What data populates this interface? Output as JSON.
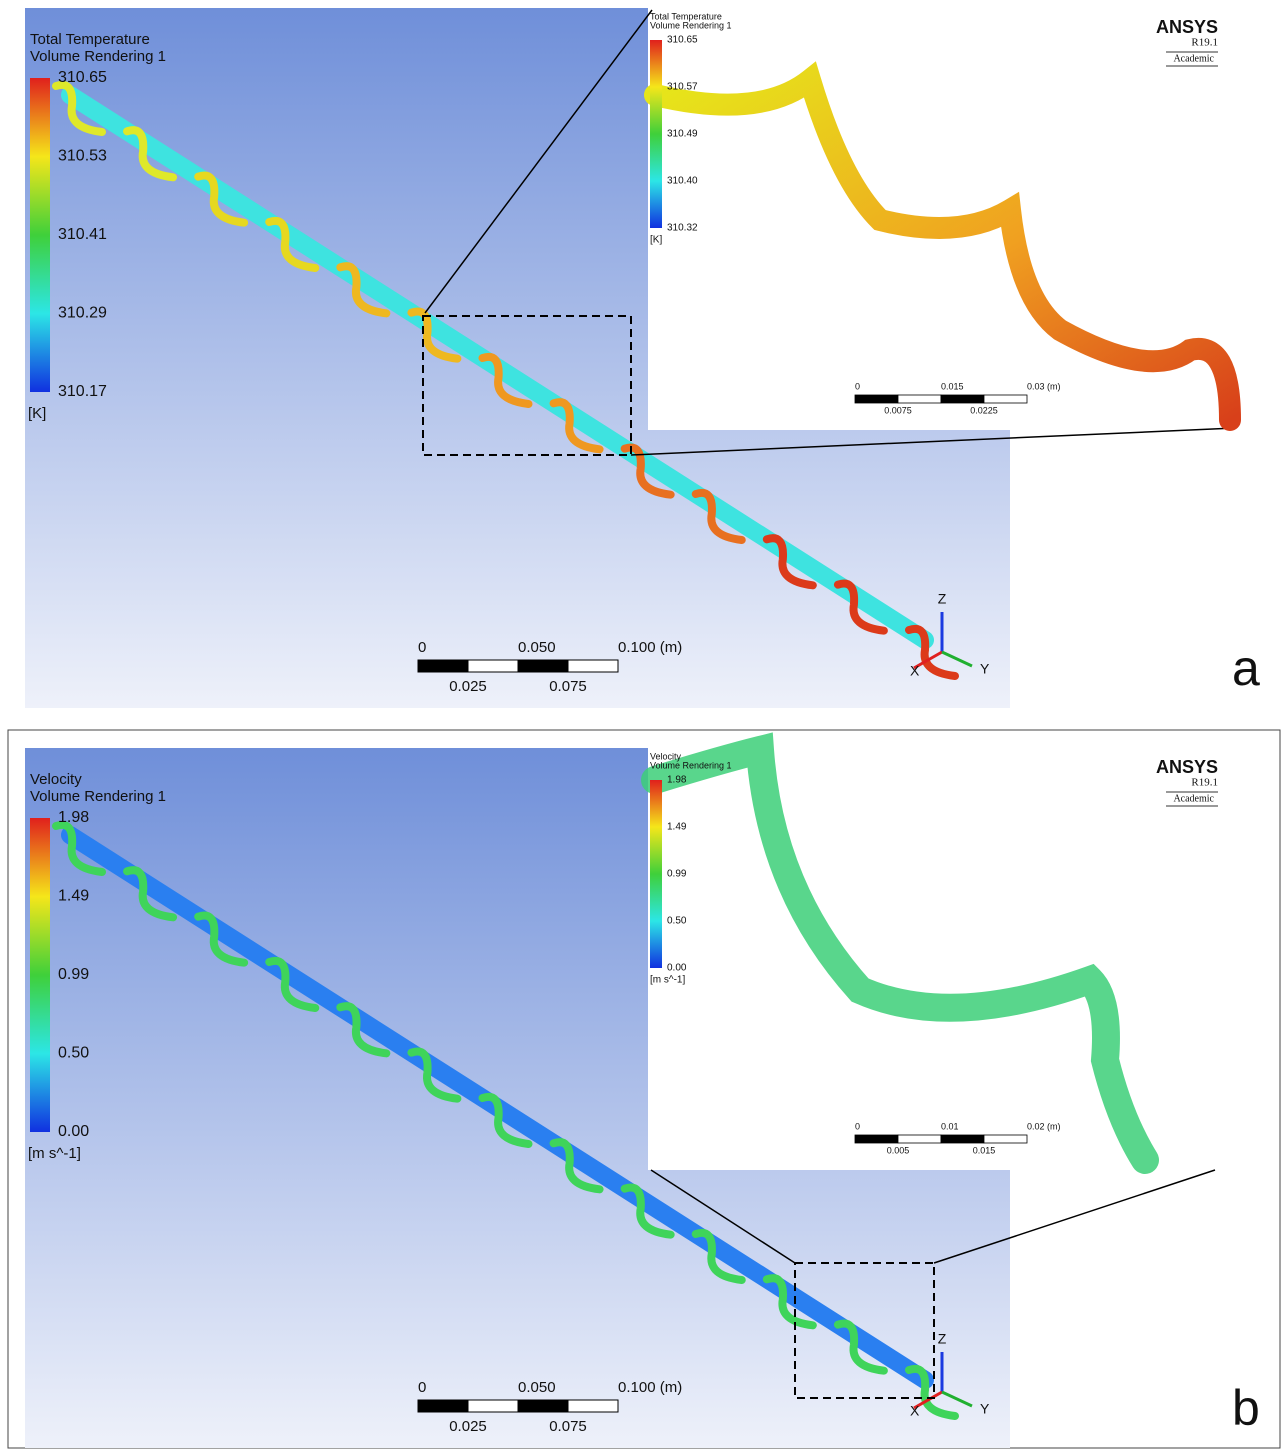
{
  "panels": [
    {
      "letter": "a",
      "legend": {
        "title": "Total Temperature",
        "subtitle": "Volume Rendering 1",
        "ticks": [
          "310.65",
          "310.53",
          "310.41",
          "310.29",
          "310.17"
        ],
        "unit": "[K]"
      },
      "scale_bar": {
        "ticks": [
          "0",
          "0.050",
          "0.100 (m)"
        ],
        "subticks": [
          "0.025",
          "0.075"
        ]
      },
      "axes": [
        "Z",
        "X",
        "Y"
      ],
      "inset": {
        "legend": {
          "title": "Total Temperature",
          "subtitle": "Volume Rendering 1",
          "ticks": [
            "310.65",
            "310.57",
            "310.49",
            "310.40",
            "310.32"
          ],
          "unit": "[K]"
        },
        "scale_bar": {
          "ticks": [
            "0",
            "0.015",
            "0.03 (m)"
          ],
          "subticks": [
            "0.0075",
            "0.0225"
          ]
        }
      },
      "logo": {
        "name": "ANSYS",
        "version": "R19.1",
        "edition": "Academic"
      }
    },
    {
      "letter": "b",
      "legend": {
        "title": "Velocity",
        "subtitle": "Volume Rendering 1",
        "ticks": [
          "1.98",
          "1.49",
          "0.99",
          "0.50",
          "0.00"
        ],
        "unit": "[m s^-1]"
      },
      "scale_bar": {
        "ticks": [
          "0",
          "0.050",
          "0.100 (m)"
        ],
        "subticks": [
          "0.025",
          "0.075"
        ]
      },
      "axes": [
        "Z",
        "X",
        "Y"
      ],
      "inset": {
        "legend": {
          "title": "Velocity",
          "subtitle": "Volume Rendering 1",
          "ticks": [
            "1.98",
            "1.49",
            "0.99",
            "0.50",
            "0.00"
          ],
          "unit": "[m s^-1]"
        },
        "scale_bar": {
          "ticks": [
            "0",
            "0.01",
            "0.02 (m)"
          ],
          "subticks": [
            "0.005",
            "0.015"
          ]
        }
      },
      "logo": {
        "name": "ANSYS",
        "version": "R19.1",
        "edition": "Academic"
      }
    }
  ]
}
